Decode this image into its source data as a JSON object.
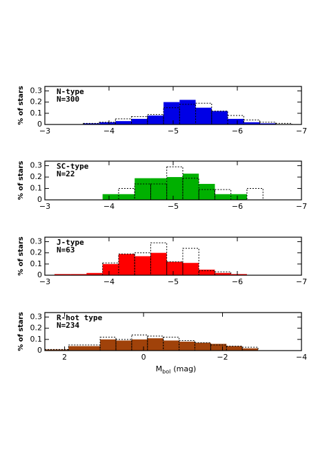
{
  "chart_data": [
    {
      "type": "histogram",
      "annotations": [
        "N-type",
        "N=300"
      ],
      "ylabel": "% of stars",
      "bins": [
        -3.6,
        -3.85,
        -4.1,
        -4.35,
        -4.6,
        -4.85,
        -5.1,
        -5.35,
        -5.6,
        -5.85,
        -6.1,
        -6.35,
        -6.6,
        -6.85
      ],
      "series": [
        {
          "color": "#0000e6",
          "style": "filled",
          "values": [
            0.01,
            0.02,
            0.03,
            0.05,
            0.08,
            0.2,
            0.22,
            0.15,
            0.12,
            0.05,
            0.02,
            0.01,
            0
          ]
        },
        {
          "color": "#000000",
          "style": "dotted",
          "values": [
            0.01,
            0.02,
            0.05,
            0.07,
            0.09,
            0.15,
            0.18,
            0.19,
            0.12,
            0.08,
            0.04,
            0.02,
            0.01
          ]
        }
      ],
      "xlim": [
        -3,
        -7
      ],
      "xticks": [
        {
          "value": -3,
          "label": "−3"
        },
        {
          "value": -4,
          "label": "−4"
        },
        {
          "value": -5,
          "label": "−5"
        },
        {
          "value": -6,
          "label": "−6"
        },
        {
          "value": -7,
          "label": "−7"
        }
      ],
      "ylim": [
        0,
        0.34
      ],
      "yticks": [
        0,
        0.1,
        0.2,
        0.3
      ]
    },
    {
      "type": "histogram",
      "annotations": [
        "SC-type",
        "N=22"
      ],
      "ylabel": "% of stars",
      "bins": [
        -3.9,
        -4.15,
        -4.4,
        -4.65,
        -4.9,
        -5.15,
        -5.4,
        -5.65,
        -5.9,
        -6.15,
        -6.4
      ],
      "series": [
        {
          "color": "#00b000",
          "style": "filled",
          "values": [
            0.05,
            0.05,
            0.19,
            0.19,
            0.2,
            0.23,
            0.14,
            0.05,
            0.05,
            0
          ]
        },
        {
          "color": "#000000",
          "style": "dotted",
          "values": [
            0,
            0.1,
            0.14,
            0.14,
            0.29,
            0.19,
            0.09,
            0.09,
            0,
            0.1
          ]
        }
      ],
      "xlim": [
        -3,
        -7
      ],
      "xticks": [
        {
          "value": -3,
          "label": "−3"
        },
        {
          "value": -4,
          "label": "−4"
        },
        {
          "value": -5,
          "label": "−5"
        },
        {
          "value": -6,
          "label": "−6"
        },
        {
          "value": -7,
          "label": "−7"
        }
      ],
      "ylim": [
        0,
        0.34
      ],
      "yticks": [
        0,
        0.1,
        0.2,
        0.3
      ]
    },
    {
      "type": "histogram",
      "annotations": [
        "J-type",
        "N=63"
      ],
      "ylabel": "% of stars",
      "bins": [
        -3.15,
        -3.4,
        -3.65,
        -3.9,
        -4.15,
        -4.4,
        -4.65,
        -4.9,
        -5.15,
        -5.4,
        -5.65,
        -5.9,
        -6.15
      ],
      "series": [
        {
          "color": "#ff0000",
          "style": "filled",
          "values": [
            0.01,
            0.01,
            0.02,
            0.1,
            0.19,
            0.17,
            0.2,
            0.12,
            0.11,
            0.05,
            0.02,
            0.01
          ]
        },
        {
          "color": "#000000",
          "style": "dotted",
          "values": [
            0,
            0,
            0,
            0.11,
            0.19,
            0.2,
            0.29,
            0.12,
            0.24,
            0.04,
            0.03,
            0
          ]
        }
      ],
      "xlim": [
        -3,
        -7
      ],
      "xticks": [
        {
          "value": -3,
          "label": "−3"
        },
        {
          "value": -4,
          "label": "−4"
        },
        {
          "value": -5,
          "label": "−5"
        },
        {
          "value": -6,
          "label": "−6"
        },
        {
          "value": -7,
          "label": "−7"
        }
      ],
      "ylim": [
        0,
        0.34
      ],
      "yticks": [
        0,
        0.1,
        0.2,
        0.3
      ]
    },
    {
      "type": "histogram",
      "annotations": [
        "R-hot type",
        "N=234"
      ],
      "ylabel": "% of stars",
      "xlabel": {
        "main": "M",
        "sub": "bol",
        "rest": "(mag)"
      },
      "bins": [
        2.5,
        1.9,
        1.1,
        0.7,
        0.3,
        -0.1,
        -0.5,
        -0.9,
        -1.3,
        -1.7,
        -2.1,
        -2.5,
        -2.9
      ],
      "series": [
        {
          "color": "#a0420a",
          "style": "filled",
          "values": [
            0.01,
            0.04,
            0.1,
            0.09,
            0.1,
            0.11,
            0.09,
            0.08,
            0.07,
            0.06,
            0.04,
            0.02
          ]
        },
        {
          "color": "#000000",
          "style": "dotted",
          "values": [
            0.01,
            0.05,
            0.12,
            0.1,
            0.14,
            0.13,
            0.12,
            0.09,
            0.07,
            0.05,
            0.04,
            0.03
          ]
        }
      ],
      "xlim": [
        2.5,
        -4
      ],
      "xticks": [
        2,
        0,
        {
          "value": -2,
          "label": "−2"
        },
        {
          "value": -4,
          "label": "−4"
        }
      ],
      "ylim": [
        0,
        0.34
      ],
      "yticks": [
        0,
        0.1,
        0.2,
        0.3
      ]
    }
  ]
}
